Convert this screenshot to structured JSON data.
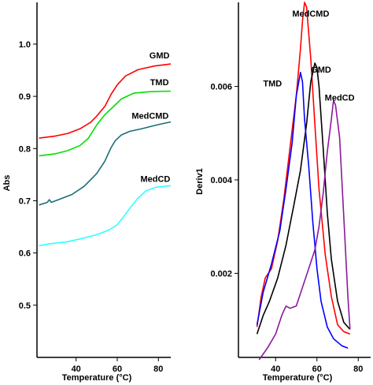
{
  "chart_data": [
    {
      "type": "line",
      "xlabel": "Temperature (°C)",
      "ylabel": "Abs",
      "xlim": [
        21,
        86
      ],
      "ylim": [
        0.4,
        1.08
      ],
      "xticks": [
        "40",
        "60",
        "80"
      ],
      "yticks": [
        "0.5",
        "0.6",
        "0.7",
        "0.8",
        "0.9",
        "1.0"
      ],
      "series": [
        {
          "name": "GMD",
          "color": "#ff0000",
          "points": [
            [
              22,
              0.82
            ],
            [
              30,
              0.824
            ],
            [
              36,
              0.829
            ],
            [
              42,
              0.838
            ],
            [
              47,
              0.85
            ],
            [
              50,
              0.862
            ],
            [
              54,
              0.881
            ],
            [
              57,
              0.904
            ],
            [
              60,
              0.922
            ],
            [
              64,
              0.939
            ],
            [
              70,
              0.951
            ],
            [
              78,
              0.958
            ],
            [
              86,
              0.962
            ]
          ]
        },
        {
          "name": "TMD",
          "color": "#00e000",
          "points": [
            [
              22,
              0.786
            ],
            [
              30,
              0.79
            ],
            [
              36,
              0.796
            ],
            [
              42,
              0.806
            ],
            [
              46,
              0.82
            ],
            [
              50,
              0.845
            ],
            [
              54,
              0.865
            ],
            [
              57,
              0.876
            ],
            [
              62,
              0.895
            ],
            [
              68,
              0.906
            ],
            [
              76,
              0.909
            ],
            [
              86,
              0.91
            ]
          ]
        },
        {
          "name": "MedCMD",
          "color": "#1a6e78",
          "points": [
            [
              22,
              0.692
            ],
            [
              26,
              0.697
            ],
            [
              27,
              0.702
            ],
            [
              28,
              0.697
            ],
            [
              32,
              0.703
            ],
            [
              38,
              0.712
            ],
            [
              44,
              0.728
            ],
            [
              50,
              0.752
            ],
            [
              54,
              0.776
            ],
            [
              57,
              0.802
            ],
            [
              59,
              0.815
            ],
            [
              62,
              0.826
            ],
            [
              66,
              0.833
            ],
            [
              72,
              0.838
            ],
            [
              79,
              0.845
            ],
            [
              86,
              0.851
            ]
          ]
        },
        {
          "name": "MedCD",
          "color": "#33ffff",
          "points": [
            [
              22,
              0.614
            ],
            [
              28,
              0.618
            ],
            [
              35,
              0.621
            ],
            [
              42,
              0.627
            ],
            [
              50,
              0.635
            ],
            [
              56,
              0.644
            ],
            [
              60,
              0.654
            ],
            [
              63,
              0.669
            ],
            [
              66,
              0.685
            ],
            [
              70,
              0.705
            ],
            [
              74,
              0.719
            ],
            [
              79,
              0.726
            ],
            [
              86,
              0.729
            ]
          ]
        }
      ],
      "labels": [
        {
          "text": "GMD",
          "x": 80.5,
          "y": 0.973
        },
        {
          "text": "TMD",
          "x": 80.5,
          "y": 0.921
        },
        {
          "text": "MedCMD",
          "x": 76,
          "y": 0.857
        },
        {
          "text": "MedCD",
          "x": 78.5,
          "y": 0.736
        }
      ]
    },
    {
      "type": "line",
      "xlabel": "Temperature (°C)",
      "ylabel": "Deriv1",
      "xlim": [
        22,
        86
      ],
      "ylim": [
        0.0002,
        0.0078
      ],
      "xticks": [
        "40",
        "60",
        "80"
      ],
      "yticks": [
        "0.002",
        "0.004",
        "0.006"
      ],
      "series": [
        {
          "name": "MedCMD",
          "color": "#ff0000",
          "points": [
            [
              31,
              0.00085
            ],
            [
              33,
              0.0015
            ],
            [
              35,
              0.0019
            ],
            [
              38,
              0.0021
            ],
            [
              41,
              0.0027
            ],
            [
              44,
              0.0036
            ],
            [
              47,
              0.0047
            ],
            [
              50,
              0.0058
            ],
            [
              52,
              0.0068
            ],
            [
              53,
              0.0074
            ],
            [
              54,
              0.0078
            ],
            [
              55,
              0.0077
            ],
            [
              57,
              0.0066
            ],
            [
              59,
              0.0052
            ],
            [
              61,
              0.0038
            ],
            [
              64,
              0.0024
            ],
            [
              67,
              0.0015
            ],
            [
              70,
              0.0009
            ],
            [
              73,
              0.00075
            ],
            [
              76,
              0.0007
            ]
          ]
        },
        {
          "name": "GMD",
          "color": "#000000",
          "points": [
            [
              31,
              0.0007
            ],
            [
              34,
              0.0011
            ],
            [
              37,
              0.0014
            ],
            [
              41,
              0.0019
            ],
            [
              45,
              0.0026
            ],
            [
              49,
              0.0035
            ],
            [
              52,
              0.0042
            ],
            [
              55,
              0.0052
            ],
            [
              57,
              0.0061
            ],
            [
              59,
              0.0065
            ],
            [
              60,
              0.0064
            ],
            [
              61,
              0.006
            ],
            [
              63,
              0.0047
            ],
            [
              65,
              0.0033
            ],
            [
              67,
              0.0023
            ],
            [
              70,
              0.0014
            ],
            [
              73,
              0.00095
            ],
            [
              76,
              0.0008
            ]
          ]
        },
        {
          "name": "TMD",
          "color": "#0000ff",
          "points": [
            [
              31,
              0.0009
            ],
            [
              34,
              0.0016
            ],
            [
              38,
              0.0022
            ],
            [
              42,
              0.0029
            ],
            [
              45,
              0.0038
            ],
            [
              48,
              0.0048
            ],
            [
              50,
              0.0058
            ],
            [
              52,
              0.0063
            ],
            [
              53,
              0.0061
            ],
            [
              54,
              0.0053
            ],
            [
              56,
              0.0043
            ],
            [
              58,
              0.0031
            ],
            [
              60,
              0.0021
            ],
            [
              62,
              0.0014
            ],
            [
              65,
              0.00085
            ],
            [
              68,
              0.0006
            ],
            [
              72,
              0.00045
            ],
            [
              75,
              0.0004
            ]
          ]
        },
        {
          "name": "MedCD",
          "color": "#8a1a9a",
          "points": [
            [
              32,
              0.00015
            ],
            [
              36,
              0.0004
            ],
            [
              40,
              0.0007
            ],
            [
              43,
              0.0011
            ],
            [
              45,
              0.0013
            ],
            [
              47,
              0.00125
            ],
            [
              50,
              0.0013
            ],
            [
              53,
              0.0017
            ],
            [
              56,
              0.0021
            ],
            [
              59,
              0.0025
            ],
            [
              61,
              0.003
            ],
            [
              63,
              0.0037
            ],
            [
              65,
              0.0046
            ],
            [
              67,
              0.0053
            ],
            [
              68,
              0.0057
            ],
            [
              69,
              0.0056
            ],
            [
              71,
              0.0049
            ],
            [
              73,
              0.0032
            ],
            [
              75,
              0.0015
            ],
            [
              76,
              0.0008
            ]
          ]
        }
      ],
      "labels": [
        {
          "text": "MedCMD",
          "x": 57,
          "y": 0.0075
        },
        {
          "text": "GMD",
          "x": 62,
          "y": 0.0063
        },
        {
          "text": "TMD",
          "x": 38.5,
          "y": 0.006
        },
        {
          "text": "MedCD",
          "x": 71,
          "y": 0.0057
        }
      ]
    }
  ]
}
